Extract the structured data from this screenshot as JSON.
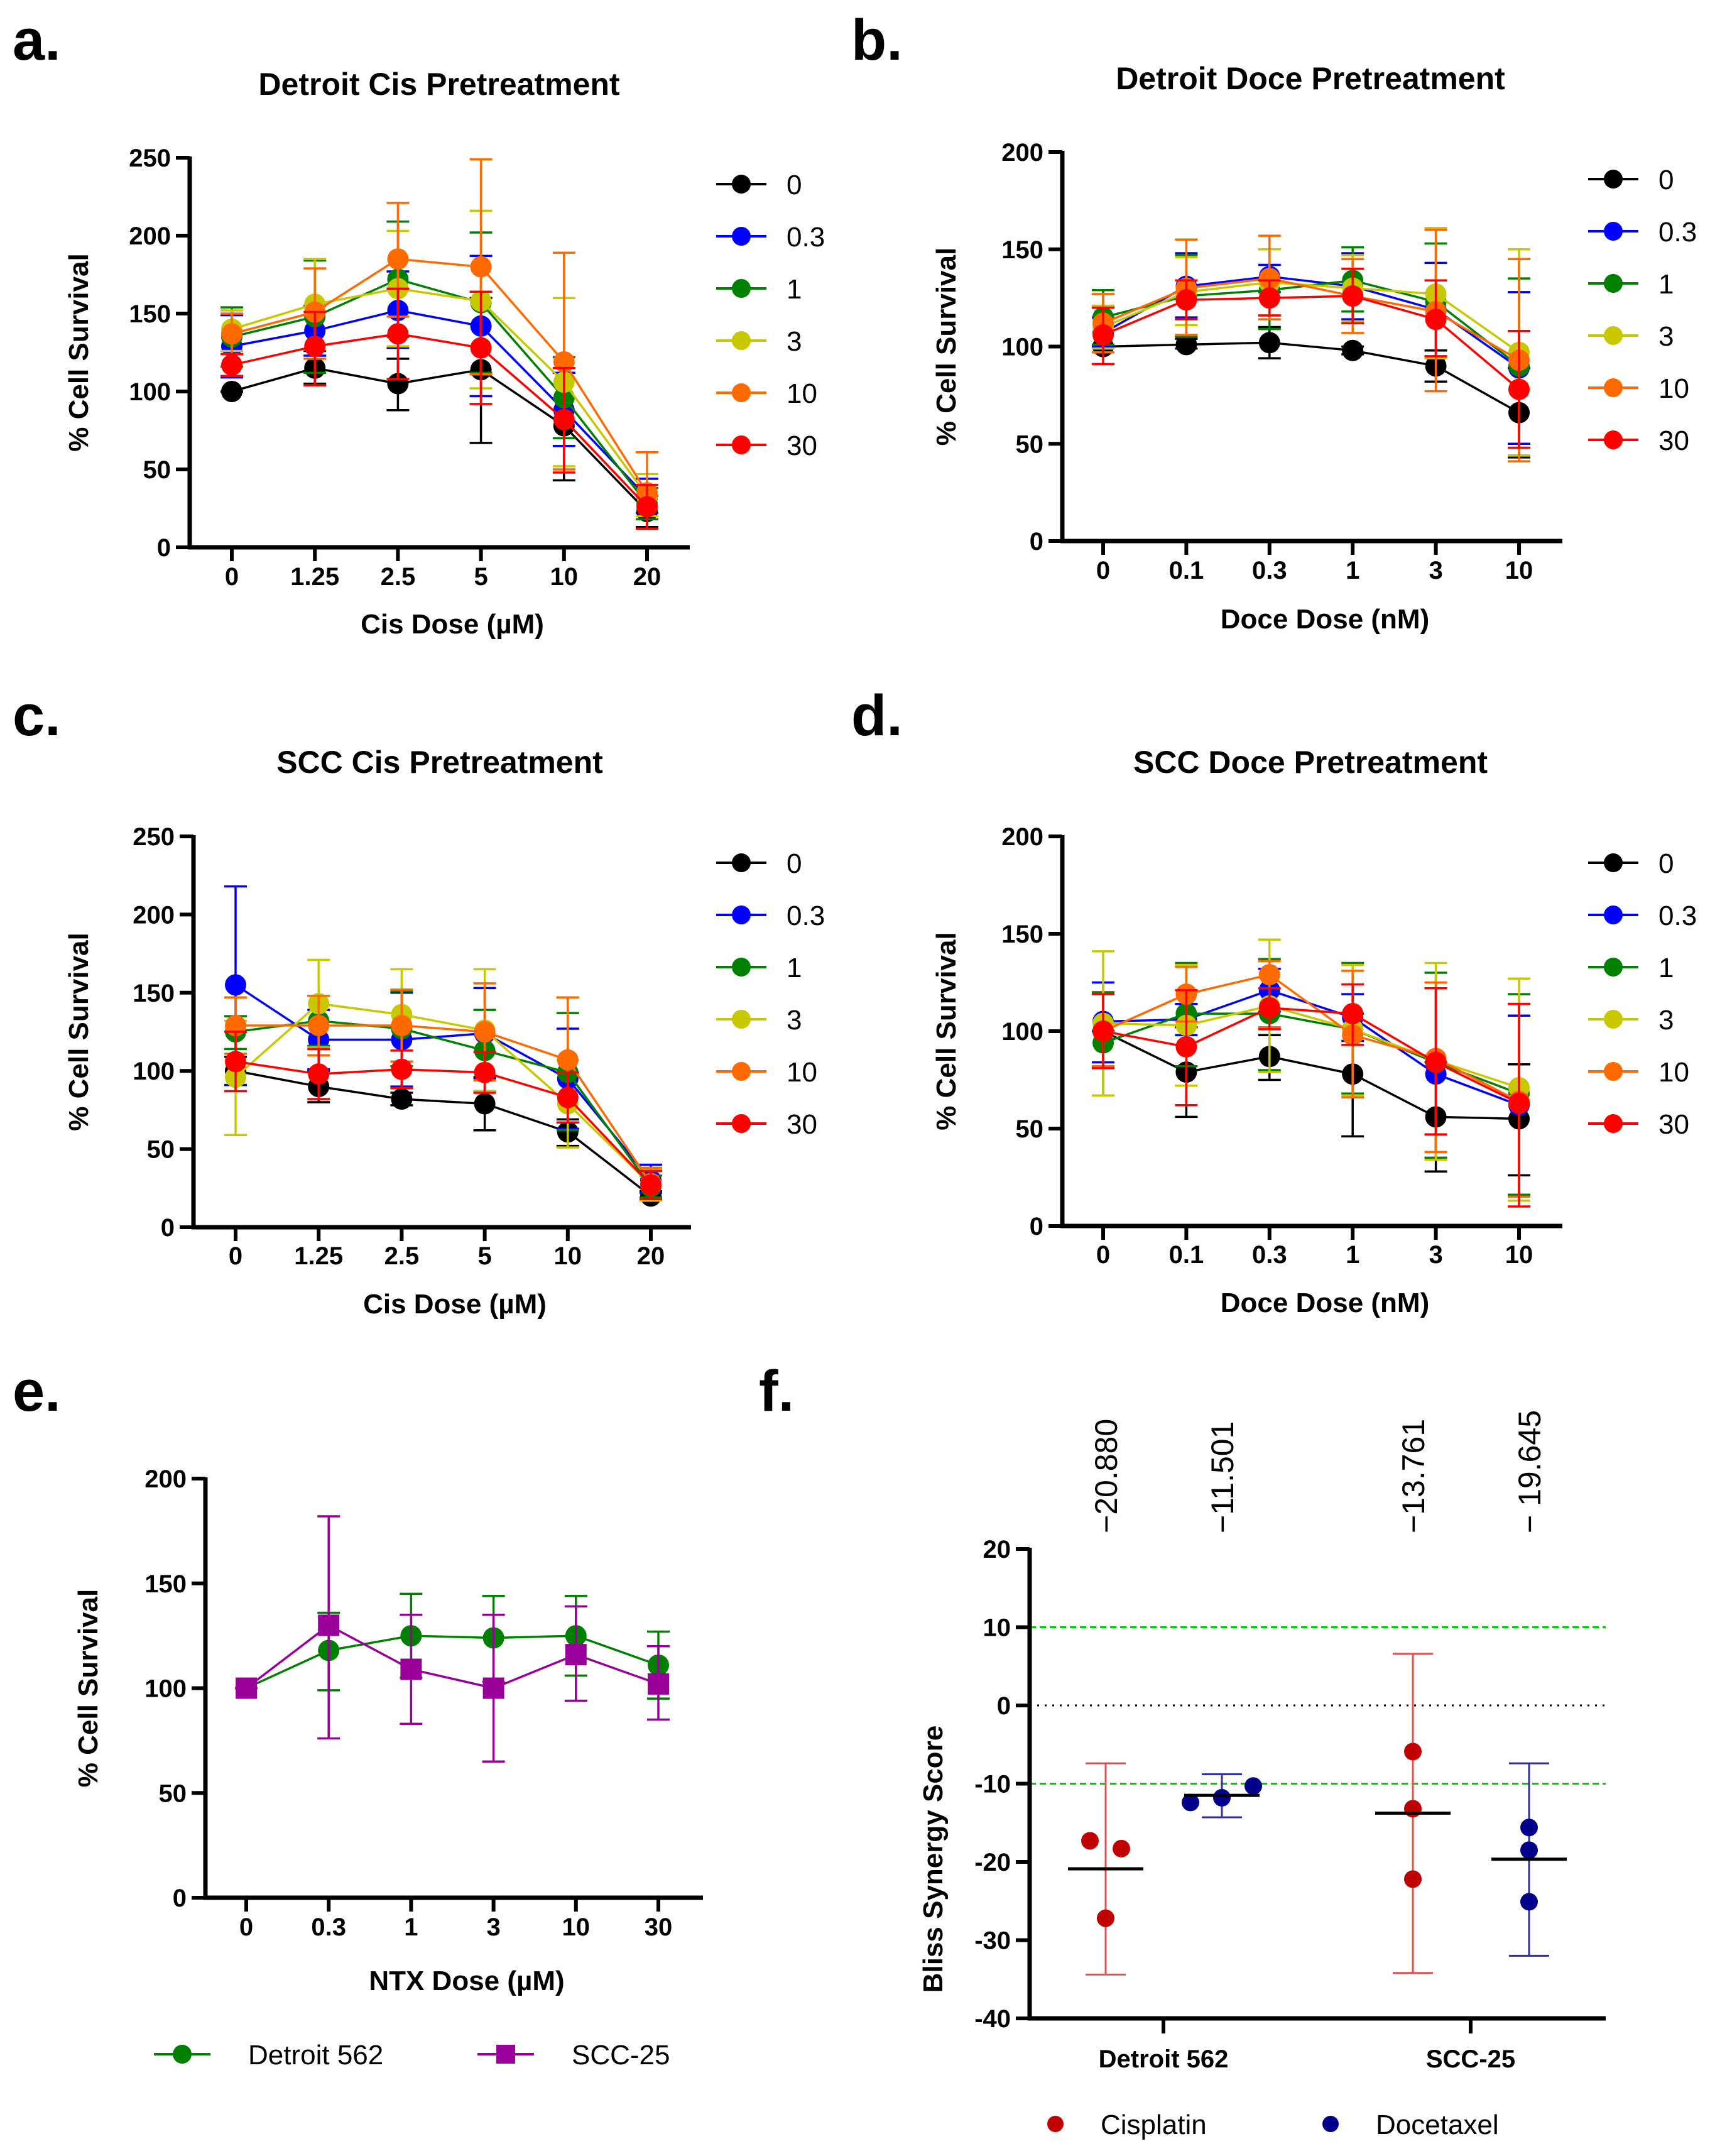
{
  "chart_data": [
    {
      "id": "a",
      "type": "line",
      "panel_label": "a.",
      "title": "Detroit Cis Pretreatment",
      "xlabel": "Cis Dose (µM)",
      "ylabel": "% Cell Survival",
      "categories": [
        "0",
        "1.25",
        "2.5",
        "5",
        "10",
        "20"
      ],
      "ylim": [
        0,
        250
      ],
      "yticks": [
        0,
        50,
        100,
        150,
        200,
        250
      ],
      "legend_position": "right",
      "series": [
        {
          "name": "0",
          "color": "#000000",
          "values": [
            100,
            115,
            105,
            114,
            78,
            23
          ],
          "err_lo": [
            100,
            105,
            88,
            67,
            43,
            13
          ],
          "err_hi": [
            100,
            126,
            121,
            160,
            112,
            33
          ]
        },
        {
          "name": "0.3",
          "color": "#0000ff",
          "values": [
            129,
            139,
            152,
            142,
            88,
            32
          ],
          "err_lo": [
            109,
            123,
            128,
            97,
            65,
            22
          ],
          "err_hi": [
            149,
            155,
            177,
            187,
            112,
            44
          ]
        },
        {
          "name": "1",
          "color": "#008000",
          "values": [
            135,
            148,
            172,
            157,
            96,
            28
          ],
          "err_lo": [
            116,
            112,
            135,
            112,
            70,
            18
          ],
          "err_hi": [
            154,
            184,
            209,
            202,
            122,
            38
          ]
        },
        {
          "name": "3",
          "color": "#c8c800",
          "values": [
            140,
            156,
            166,
            158,
            106,
            33
          ],
          "err_lo": [
            126,
            127,
            129,
            102,
            52,
            20
          ],
          "err_hi": [
            152,
            185,
            203,
            216,
            160,
            47
          ]
        },
        {
          "name": "10",
          "color": "#ff6a00",
          "values": [
            137,
            151,
            185,
            180,
            119,
            35
          ],
          "err_lo": [
            124,
            121,
            148,
            111,
            50,
            12
          ],
          "err_hi": [
            150,
            179,
            221,
            249,
            189,
            61
          ]
        },
        {
          "name": "30",
          "color": "#ff0000",
          "values": [
            117,
            129,
            137,
            128,
            82,
            26
          ],
          "err_lo": [
            110,
            104,
            108,
            92,
            48,
            12
          ],
          "err_hi": [
            124,
            151,
            166,
            164,
            115,
            40
          ]
        }
      ]
    },
    {
      "id": "b",
      "type": "line",
      "panel_label": "b.",
      "title": "Detroit Doce Pretreatment",
      "xlabel": "Doce Dose (nM)",
      "ylabel": "% Cell Survival",
      "categories": [
        "0",
        "0.1",
        "0.3",
        "1",
        "3",
        "10"
      ],
      "ylim": [
        0,
        200
      ],
      "yticks": [
        0,
        50,
        100,
        150,
        200
      ],
      "legend_position": "right",
      "series": [
        {
          "name": "0",
          "color": "#000000",
          "values": [
            100,
            101,
            102,
            98,
            90,
            66
          ],
          "err_lo": [
            100,
            99,
            94,
            96,
            82,
            43
          ],
          "err_hi": [
            100,
            104,
            110,
            100,
            98,
            89
          ]
        },
        {
          "name": "0.3",
          "color": "#0000ff",
          "values": [
            107,
            131,
            136,
            131,
            119,
            89
          ],
          "err_lo": [
            100,
            115,
            128,
            114,
            95,
            50
          ],
          "err_hi": [
            115,
            148,
            142,
            148,
            143,
            128
          ]
        },
        {
          "name": "1",
          "color": "#008000",
          "values": [
            115,
            126,
            129,
            134,
            123,
            90
          ],
          "err_lo": [
            101,
            105,
            109,
            118,
            94,
            44
          ],
          "err_hi": [
            129,
            147,
            150,
            151,
            153,
            135
          ]
        },
        {
          "name": "3",
          "color": "#c8c800",
          "values": [
            110,
            128,
            133,
            130,
            127,
            97
          ],
          "err_lo": [
            99,
            111,
            116,
            113,
            94,
            44
          ],
          "err_hi": [
            121,
            146,
            150,
            147,
            161,
            150
          ]
        },
        {
          "name": "10",
          "color": "#ff6a00",
          "values": [
            112,
            130,
            135,
            126,
            118,
            93
          ],
          "err_lo": [
            97,
            106,
            114,
            107,
            77,
            41
          ],
          "err_hi": [
            127,
            155,
            157,
            145,
            160,
            145
          ]
        },
        {
          "name": "30",
          "color": "#ff0000",
          "values": [
            106,
            124,
            125,
            126,
            114,
            78
          ],
          "err_lo": [
            91,
            114,
            116,
            112,
            95,
            48
          ],
          "err_hi": [
            120,
            134,
            134,
            140,
            134,
            108
          ]
        }
      ]
    },
    {
      "id": "c",
      "type": "line",
      "panel_label": "c.",
      "title": "SCC Cis Pretreatment",
      "xlabel": "Cis Dose (µM)",
      "ylabel": "% Cell Survival",
      "categories": [
        "0",
        "1.25",
        "2.5",
        "5",
        "10",
        "20"
      ],
      "ylim": [
        0,
        250
      ],
      "yticks": [
        0,
        50,
        100,
        150,
        200,
        250
      ],
      "legend_position": "right",
      "series": [
        {
          "name": "0",
          "color": "#000000",
          "values": [
            100,
            90,
            82,
            79,
            61,
            20
          ],
          "err_lo": [
            91,
            80,
            78,
            62,
            52,
            17
          ],
          "err_hi": [
            109,
            100,
            86,
            96,
            69,
            23
          ]
        },
        {
          "name": "0.3",
          "color": "#0000ff",
          "values": [
            155,
            120,
            120,
            124,
            95,
            30
          ],
          "err_lo": [
            91,
            101,
            90,
            95,
            63,
            22
          ],
          "err_hi": [
            218,
            139,
            150,
            153,
            127,
            40
          ]
        },
        {
          "name": "1",
          "color": "#008000",
          "values": [
            125,
            132,
            127,
            113,
            99,
            26
          ],
          "err_lo": [
            114,
            116,
            103,
            87,
            62,
            19
          ],
          "err_hi": [
            135,
            148,
            151,
            139,
            137,
            33
          ]
        },
        {
          "name": "3",
          "color": "#c8c800",
          "values": [
            96,
            143,
            136,
            126,
            79,
            27
          ],
          "err_lo": [
            59,
            115,
            106,
            87,
            51,
            17
          ],
          "err_hi": [
            132,
            171,
            165,
            165,
            107,
            37
          ]
        },
        {
          "name": "10",
          "color": "#ff6a00",
          "values": [
            129,
            129,
            129,
            125,
            107,
            28
          ],
          "err_lo": [
            111,
            110,
            106,
            94,
            67,
            18
          ],
          "err_hi": [
            147,
            148,
            152,
            156,
            147,
            38
          ]
        },
        {
          "name": "30",
          "color": "#ff0000",
          "values": [
            106,
            98,
            101,
            99,
            83,
            27
          ],
          "err_lo": [
            87,
            82,
            89,
            86,
            67,
            18
          ],
          "err_hi": [
            125,
            114,
            113,
            112,
            99,
            36
          ]
        }
      ]
    },
    {
      "id": "d",
      "type": "line",
      "panel_label": "d.",
      "title": "SCC Doce Pretreatment",
      "xlabel": "Doce Dose (nM)",
      "ylabel": "% Cell Survival",
      "categories": [
        "0",
        "0.1",
        "0.3",
        "1",
        "3",
        "10"
      ],
      "ylim": [
        0,
        200
      ],
      "yticks": [
        0,
        50,
        100,
        150,
        200
      ],
      "legend_position": "right",
      "series": [
        {
          "name": "0",
          "color": "#000000",
          "values": [
            100,
            79,
            87,
            78,
            56,
            55
          ],
          "err_lo": [
            100,
            56,
            75,
            46,
            28,
            26
          ],
          "err_hi": [
            100,
            102,
            98,
            109,
            84,
            83
          ]
        },
        {
          "name": "0.3",
          "color": "#0000ff",
          "values": [
            105,
            106,
            121,
            107,
            78,
            62
          ],
          "err_lo": [
            84,
            98,
            110,
            95,
            35,
            16
          ],
          "err_hi": [
            125,
            114,
            132,
            119,
            122,
            108
          ]
        },
        {
          "name": "1",
          "color": "#008000",
          "values": [
            94,
            109,
            109,
            101,
            84,
            68
          ],
          "err_lo": [
            67,
            82,
            80,
            68,
            35,
            16
          ],
          "err_hi": [
            120,
            135,
            137,
            135,
            130,
            119
          ]
        },
        {
          "name": "3",
          "color": "#c8c800",
          "values": [
            104,
            103,
            113,
            101,
            85,
            71
          ],
          "err_lo": [
            67,
            72,
            79,
            67,
            34,
            13
          ],
          "err_hi": [
            141,
            134,
            147,
            134,
            135,
            127
          ]
        },
        {
          "name": "10",
          "color": "#ff6a00",
          "values": [
            100,
            119,
            129,
            98,
            86,
            64
          ],
          "err_lo": [
            82,
            105,
            102,
            66,
            38,
            15
          ],
          "err_hi": [
            119,
            133,
            136,
            131,
            125,
            114
          ]
        },
        {
          "name": "30",
          "color": "#ff0000",
          "values": [
            100,
            92,
            112,
            109,
            84,
            63
          ],
          "err_lo": [
            81,
            62,
            101,
            93,
            47,
            10
          ],
          "err_hi": [
            119,
            121,
            122,
            124,
            122,
            114
          ]
        }
      ]
    },
    {
      "id": "e",
      "type": "line",
      "panel_label": "e.",
      "title": "",
      "xlabel": "NTX Dose (µM)",
      "ylabel": "% Cell Survival",
      "categories": [
        "0",
        "0.3",
        "1",
        "3",
        "10",
        "30"
      ],
      "ylim": [
        0,
        200
      ],
      "yticks": [
        0,
        50,
        100,
        150,
        200
      ],
      "legend_position": "bottom",
      "series": [
        {
          "name": "Detroit 562",
          "color": "#008000",
          "marker": "circle",
          "values": [
            100,
            118,
            125,
            124,
            125,
            111
          ],
          "err_lo": [
            100,
            99,
            105,
            103,
            106,
            95
          ],
          "err_hi": [
            100,
            136,
            145,
            144,
            144,
            127
          ]
        },
        {
          "name": "SCC-25",
          "color": "#990099",
          "marker": "square",
          "values": [
            100,
            130,
            109,
            100,
            116,
            102
          ],
          "err_lo": [
            100,
            76,
            83,
            65,
            94,
            85
          ],
          "err_hi": [
            100,
            182,
            135,
            135,
            139,
            120
          ]
        }
      ]
    },
    {
      "id": "f",
      "type": "scatter",
      "panel_label": "f.",
      "title": "",
      "xlabel": "",
      "ylabel": "Bliss Synergy Score",
      "categories": [
        "Detroit 562",
        "SCC-25"
      ],
      "ylim": [
        -40,
        20
      ],
      "yticks": [
        -40,
        -30,
        -20,
        -10,
        0,
        10,
        20
      ],
      "reference_lines": [
        {
          "value": 10,
          "color": "#00cc00",
          "style": "dashed"
        },
        {
          "value": 0,
          "color": "#000000",
          "style": "dotted"
        },
        {
          "value": -10,
          "color": "#00cc00",
          "style": "dashed"
        }
      ],
      "legend_position": "bottom",
      "groups": [
        {
          "category": "Detroit 562",
          "series": "Cisplatin",
          "color": "#c00000",
          "points": [
            -17.3,
            -18.3,
            -27.2
          ],
          "mean": -20.88,
          "mean_label": "−20.880",
          "err_lo": -34.4,
          "err_hi": -7.4
        },
        {
          "category": "Detroit 562",
          "series": "Docetaxel",
          "color": "#00008b",
          "points": [
            -12.4,
            -10.3,
            -11.8
          ],
          "mean": -11.501,
          "mean_label": "−11.501",
          "err_lo": -14.3,
          "err_hi": -8.8
        },
        {
          "category": "SCC-25",
          "series": "Cisplatin",
          "color": "#c00000",
          "points": [
            -5.9,
            -13.2,
            -22.2
          ],
          "mean": -13.761,
          "mean_label": "−13.761",
          "err_lo": -34.2,
          "err_hi": 6.6
        },
        {
          "category": "SCC-25",
          "series": "Docetaxel",
          "color": "#00008b",
          "points": [
            -15.6,
            -18.5,
            -25.1
          ],
          "mean": -19.645,
          "mean_label": "− 19.645",
          "err_lo": -32.0,
          "err_hi": -7.4
        }
      ],
      "legend": [
        {
          "name": "Cisplatin",
          "color": "#c00000"
        },
        {
          "name": "Docetaxel",
          "color": "#00008b"
        }
      ]
    }
  ]
}
